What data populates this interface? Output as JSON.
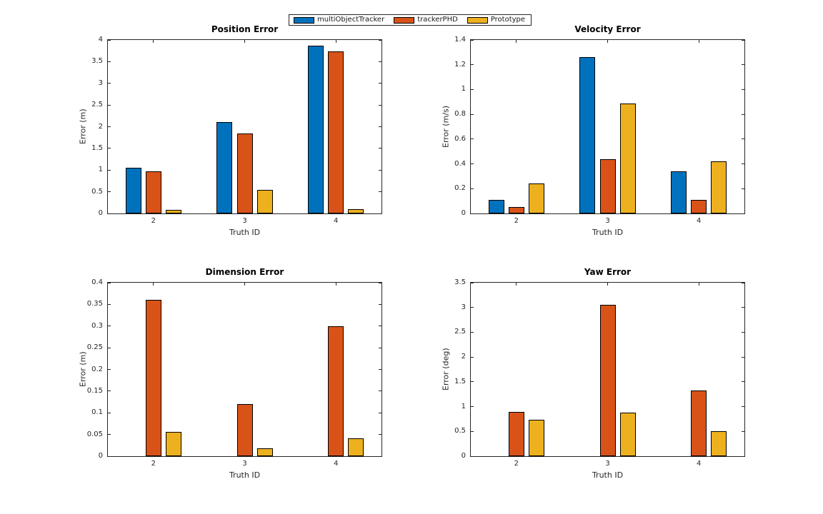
{
  "figure": {
    "background": "#ffffff"
  },
  "legend": {
    "items": [
      {
        "label": "multiObjectTracker",
        "color": "#0072BD"
      },
      {
        "label": "trackerPHD",
        "color": "#D95319"
      },
      {
        "label": "Prototype",
        "color": "#EDB120"
      }
    ]
  },
  "chart_data": [
    {
      "type": "bar",
      "title": "Position Error",
      "xlabel": "Truth ID",
      "ylabel": "Error (m)",
      "categories": [
        "2",
        "3",
        "4"
      ],
      "series": [
        {
          "name": "multiObjectTracker",
          "color": "#0072BD",
          "values": [
            1.05,
            2.11,
            3.87
          ]
        },
        {
          "name": "trackerPHD",
          "color": "#D95319",
          "values": [
            0.97,
            1.85,
            3.73
          ]
        },
        {
          "name": "Prototype",
          "color": "#EDB120",
          "values": [
            0.08,
            0.55,
            0.1
          ]
        }
      ],
      "ylim": [
        0,
        4
      ],
      "yticks": [
        0,
        0.5,
        1,
        1.5,
        2,
        2.5,
        3,
        3.5,
        4
      ],
      "ytick_labels": [
        "0",
        "0.5",
        "1",
        "1.5",
        "2",
        "2.5",
        "3",
        "3.5",
        "4"
      ],
      "grid": false,
      "legend_position": "figure-top-center"
    },
    {
      "type": "bar",
      "title": "Velocity Error",
      "xlabel": "Truth ID",
      "ylabel": "Error (m/s)",
      "categories": [
        "2",
        "3",
        "4"
      ],
      "series": [
        {
          "name": "multiObjectTracker",
          "color": "#0072BD",
          "values": [
            0.11,
            1.26,
            0.34
          ]
        },
        {
          "name": "trackerPHD",
          "color": "#D95319",
          "values": [
            0.05,
            0.44,
            0.11
          ]
        },
        {
          "name": "Prototype",
          "color": "#EDB120",
          "values": [
            0.24,
            0.89,
            0.42
          ]
        }
      ],
      "ylim": [
        0,
        1.4
      ],
      "yticks": [
        0,
        0.2,
        0.4,
        0.6,
        0.8,
        1,
        1.2,
        1.4
      ],
      "ytick_labels": [
        "0",
        "0.2",
        "0.4",
        "0.6",
        "0.8",
        "1",
        "1.2",
        "1.4"
      ],
      "grid": false,
      "legend_position": "figure-top-center"
    },
    {
      "type": "bar",
      "title": "Dimension Error",
      "xlabel": "Truth ID",
      "ylabel": "Error (m)",
      "categories": [
        "2",
        "3",
        "4"
      ],
      "series": [
        {
          "name": "multiObjectTracker",
          "color": "#0072BD",
          "values": [
            0,
            0,
            0
          ]
        },
        {
          "name": "trackerPHD",
          "color": "#D95319",
          "values": [
            0.36,
            0.12,
            0.3
          ]
        },
        {
          "name": "Prototype",
          "color": "#EDB120",
          "values": [
            0.056,
            0.018,
            0.041
          ]
        }
      ],
      "ylim": [
        0,
        0.4
      ],
      "yticks": [
        0,
        0.05,
        0.1,
        0.15,
        0.2,
        0.25,
        0.3,
        0.35,
        0.4
      ],
      "ytick_labels": [
        "0",
        "0.05",
        "0.1",
        "0.15",
        "0.2",
        "0.25",
        "0.3",
        "0.35",
        "0.4"
      ],
      "grid": false,
      "legend_position": "figure-top-center"
    },
    {
      "type": "bar",
      "title": "Yaw Error",
      "xlabel": "Truth ID",
      "ylabel": "Error (deg)",
      "categories": [
        "2",
        "3",
        "4"
      ],
      "series": [
        {
          "name": "multiObjectTracker",
          "color": "#0072BD",
          "values": [
            0,
            0,
            0
          ]
        },
        {
          "name": "trackerPHD",
          "color": "#D95319",
          "values": [
            0.9,
            3.05,
            1.33
          ]
        },
        {
          "name": "Prototype",
          "color": "#EDB120",
          "values": [
            0.73,
            0.88,
            0.51
          ]
        }
      ],
      "ylim": [
        0,
        3.5
      ],
      "yticks": [
        0,
        0.5,
        1,
        1.5,
        2,
        2.5,
        3,
        3.5
      ],
      "ytick_labels": [
        "0",
        "0.5",
        "1",
        "1.5",
        "2",
        "2.5",
        "3",
        "3.5"
      ],
      "grid": false,
      "legend_position": "figure-top-center"
    }
  ]
}
